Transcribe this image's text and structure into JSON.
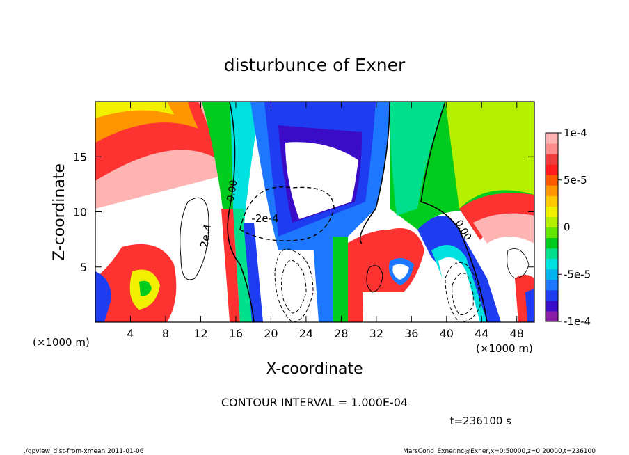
{
  "chart_data": {
    "type": "heatmap",
    "title": "disturbunce of Exner",
    "xlabel": "X-coordinate",
    "ylabel": "Z-coordinate",
    "x_unit": "(×1000 m)",
    "x_unit_right": "(×1000 m)",
    "xlim": [
      0,
      50
    ],
    "ylim": [
      0,
      20
    ],
    "x_ticks": [
      "4",
      "8",
      "12",
      "16",
      "20",
      "24",
      "28",
      "32",
      "36",
      "40",
      "44",
      "48"
    ],
    "x_tick_values": [
      4,
      8,
      12,
      16,
      20,
      24,
      28,
      32,
      36,
      40,
      44,
      48
    ],
    "y_ticks": [
      "5",
      "10",
      "15"
    ],
    "y_tick_values": [
      5,
      10,
      15
    ],
    "colorbar": {
      "min": -0.0001,
      "max": 0.0001,
      "ticks": [
        "1e-4",
        "5e-5",
        "0",
        "-5e-5",
        "-1e-4"
      ],
      "tick_values": [
        0.0001,
        5e-05,
        0,
        -5e-05,
        -0.0001
      ],
      "colors": [
        "#8b1ea6",
        "#3a0cc7",
        "#1e3cf0",
        "#1e78ff",
        "#00b4f0",
        "#00e0e0",
        "#00e08c",
        "#00cc1e",
        "#64e600",
        "#b4f000",
        "#f0f000",
        "#ffc800",
        "#ff9600",
        "#ff5a00",
        "#ff1e1e",
        "#f03c3c",
        "#ff8c8c",
        "#ffb4b4"
      ]
    },
    "contour_labels": [
      "-2e-4",
      "2e-4",
      "0.00",
      "0.00"
    ],
    "contour_interval": "CONTOUR INTERVAL = 1.000E-04",
    "time": "t=236100 s"
  },
  "footer": {
    "left": "./gpview_dist-from-xmean  2011-01-06",
    "right": "MarsCond_Exner.nc@Exner,x=0:50000,z=0:20000,t=236100"
  }
}
